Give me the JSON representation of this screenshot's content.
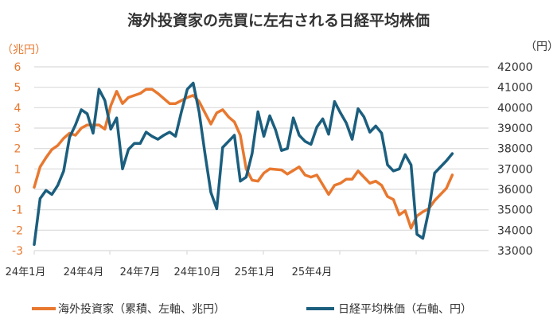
{
  "chart_data": {
    "type": "line",
    "title": "海外投資家の売買に左右される日経平均株価",
    "left_unit": "（兆円）",
    "right_unit": "（円）",
    "x_unit": "weeks since Jan 2024",
    "x_tick_labels": [
      "24年1月",
      "24年4月",
      "24年7月",
      "24年10月",
      "25年1月",
      "25年4月"
    ],
    "left_ticks": [
      "6",
      "5",
      "4",
      "3",
      "2",
      "1",
      "0",
      "-1",
      "-2",
      "-3"
    ],
    "right_ticks": [
      "42000",
      "41000",
      "40000",
      "39000",
      "38000",
      "37000",
      "36000",
      "35000",
      "34000",
      "33000"
    ],
    "left_ylim": [
      -3,
      6
    ],
    "right_ylim": [
      33000,
      42000
    ],
    "xlim": [
      0,
      74
    ],
    "grid": true,
    "legend_position": "bottom",
    "series": [
      {
        "name": "海外投資家（累積、左軸、兆円）",
        "axis": "left",
        "color": "#E8782F",
        "x": [
          0,
          1,
          2,
          3,
          4,
          5,
          6,
          7,
          8,
          9,
          11,
          12,
          13,
          14,
          15,
          16,
          18,
          19,
          20,
          21,
          23,
          24,
          26,
          27,
          28,
          29,
          30,
          31,
          32,
          33,
          34,
          35,
          36,
          37,
          38,
          39,
          40,
          42,
          43,
          45,
          46,
          47,
          48,
          50,
          51,
          52,
          53,
          54,
          55,
          56,
          57,
          58,
          59,
          60,
          61,
          62,
          63,
          64,
          65,
          66,
          67,
          68,
          70,
          71
        ],
        "values": [
          0.1,
          1.1,
          1.55,
          1.95,
          2.15,
          2.5,
          2.75,
          2.65,
          3.0,
          3.15,
          3.15,
          2.95,
          4.1,
          4.8,
          4.2,
          4.5,
          4.7,
          4.9,
          4.9,
          4.7,
          4.2,
          4.2,
          4.5,
          4.6,
          4.3,
          3.75,
          3.2,
          3.75,
          3.9,
          3.55,
          3.3,
          2.65,
          1.0,
          0.45,
          0.4,
          0.8,
          1.0,
          0.95,
          0.75,
          1.1,
          0.7,
          0.6,
          0.7,
          -0.25,
          0.2,
          0.3,
          0.5,
          0.5,
          0.9,
          0.6,
          0.3,
          0.4,
          0.2,
          -0.35,
          -0.5,
          -1.25,
          -1.05,
          -1.9,
          -1.3,
          -1.1,
          -0.95,
          -0.55,
          0.05,
          0.7
        ]
      },
      {
        "name": "日経平均株価（右軸、円）",
        "axis": "right",
        "color": "#1B5E7E",
        "x": [
          0,
          1,
          2,
          3,
          4,
          5,
          6,
          7,
          8,
          9,
          10,
          11,
          12,
          13,
          14,
          15,
          16,
          17,
          18,
          19,
          20,
          21,
          22,
          23,
          24,
          25,
          26,
          27,
          28,
          29,
          30,
          31,
          32,
          33,
          34,
          35,
          36,
          37,
          38,
          39,
          40,
          41,
          42,
          43,
          44,
          45,
          46,
          47,
          48,
          49,
          50,
          51,
          52,
          53,
          54,
          55,
          56,
          57,
          58,
          59,
          60,
          61,
          62,
          63,
          64,
          65,
          66,
          67,
          68,
          70,
          71
        ],
        "values": [
          33300,
          35550,
          35950,
          35750,
          36200,
          36900,
          38550,
          39150,
          39900,
          39700,
          38750,
          40900,
          40350,
          38950,
          39500,
          37000,
          37950,
          38250,
          38250,
          38800,
          38600,
          38450,
          38650,
          38800,
          38600,
          39800,
          40900,
          41200,
          39800,
          37750,
          35850,
          35050,
          38050,
          38350,
          38650,
          36400,
          36600,
          37750,
          39800,
          38600,
          39600,
          38900,
          37900,
          38000,
          39500,
          38650,
          38350,
          38200,
          39050,
          39450,
          38700,
          40300,
          39750,
          39250,
          38450,
          39950,
          39550,
          38800,
          39100,
          38750,
          37200,
          36900,
          37000,
          37700,
          37200,
          33800,
          33600,
          34950,
          36800,
          37400,
          37750
        ]
      }
    ]
  }
}
